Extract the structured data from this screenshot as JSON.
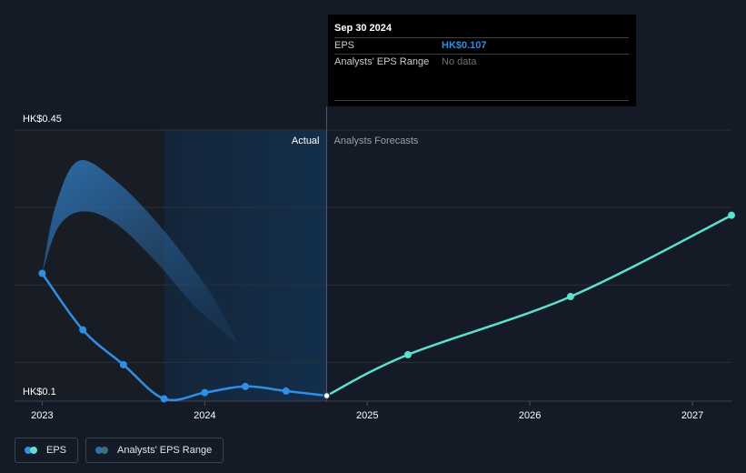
{
  "chart_data": {
    "type": "line",
    "currency_prefix": "HK$",
    "y_axis": {
      "top_label": "HK$0.45",
      "bottom_label": "HK$0.1",
      "ylim": [
        0.1,
        0.45
      ],
      "gridline_values": [
        0.45,
        0.35,
        0.25,
        0.15
      ]
    },
    "x_axis": {
      "ticks": [
        {
          "label": "2023",
          "value": 2023.0
        },
        {
          "label": "2024",
          "value": 2024.0
        },
        {
          "label": "2025",
          "value": 2025.0
        },
        {
          "label": "2026",
          "value": 2026.0
        },
        {
          "label": "2027",
          "value": 2027.0
        }
      ],
      "xlim": [
        2022.83,
        2027.24
      ]
    },
    "divider_x": 2024.75,
    "actual_shade_start": 2023.75,
    "region_labels": {
      "actual": "Actual",
      "forecast": "Analysts Forecasts"
    },
    "series": [
      {
        "name": "EPS",
        "color": "#2f8ee6",
        "points": [
          {
            "x": 2023.0,
            "y": 0.265
          },
          {
            "x": 2023.25,
            "y": 0.192
          },
          {
            "x": 2023.5,
            "y": 0.147
          },
          {
            "x": 2023.75,
            "y": 0.103
          },
          {
            "x": 2024.0,
            "y": 0.111
          },
          {
            "x": 2024.25,
            "y": 0.119
          },
          {
            "x": 2024.5,
            "y": 0.113
          },
          {
            "x": 2024.75,
            "y": 0.107
          }
        ]
      },
      {
        "name": "EPS Forecast",
        "color": "#5ee0cf",
        "points": [
          {
            "x": 2024.75,
            "y": 0.107
          },
          {
            "x": 2025.25,
            "y": 0.16
          },
          {
            "x": 2026.25,
            "y": 0.235
          },
          {
            "x": 2027.24,
            "y": 0.34
          }
        ]
      }
    ],
    "analyst_range": {
      "name": "Analysts' EPS Range",
      "color": "#2e6fae",
      "upper": [
        {
          "x": 2023.0,
          "y": 0.265
        },
        {
          "x": 2023.08,
          "y": 0.35
        },
        {
          "x": 2023.22,
          "y": 0.41
        },
        {
          "x": 2023.45,
          "y": 0.385
        },
        {
          "x": 2023.75,
          "y": 0.32
        },
        {
          "x": 2024.05,
          "y": 0.235
        },
        {
          "x": 2024.2,
          "y": 0.175
        }
      ],
      "lower": [
        {
          "x": 2024.2,
          "y": 0.175
        },
        {
          "x": 2023.95,
          "y": 0.22
        },
        {
          "x": 2023.7,
          "y": 0.28
        },
        {
          "x": 2023.45,
          "y": 0.33
        },
        {
          "x": 2023.25,
          "y": 0.345
        },
        {
          "x": 2023.1,
          "y": 0.325
        },
        {
          "x": 2023.0,
          "y": 0.265
        }
      ]
    },
    "highlight_point": {
      "x": 2024.75,
      "y": 0.107
    }
  },
  "tooltip": {
    "date": "Sep 30 2024",
    "rows": [
      {
        "label": "EPS",
        "value": "HK$0.107"
      },
      {
        "label": "Analysts' EPS Range",
        "value": "No data"
      }
    ]
  },
  "legend": {
    "items": [
      {
        "label": "EPS",
        "color_a": "#2f8ee6",
        "color_b": "#5ee0cf"
      },
      {
        "label": "Analysts' EPS Range",
        "color_a": "#2e6fae",
        "color_b": "#3d6e7c"
      }
    ]
  }
}
